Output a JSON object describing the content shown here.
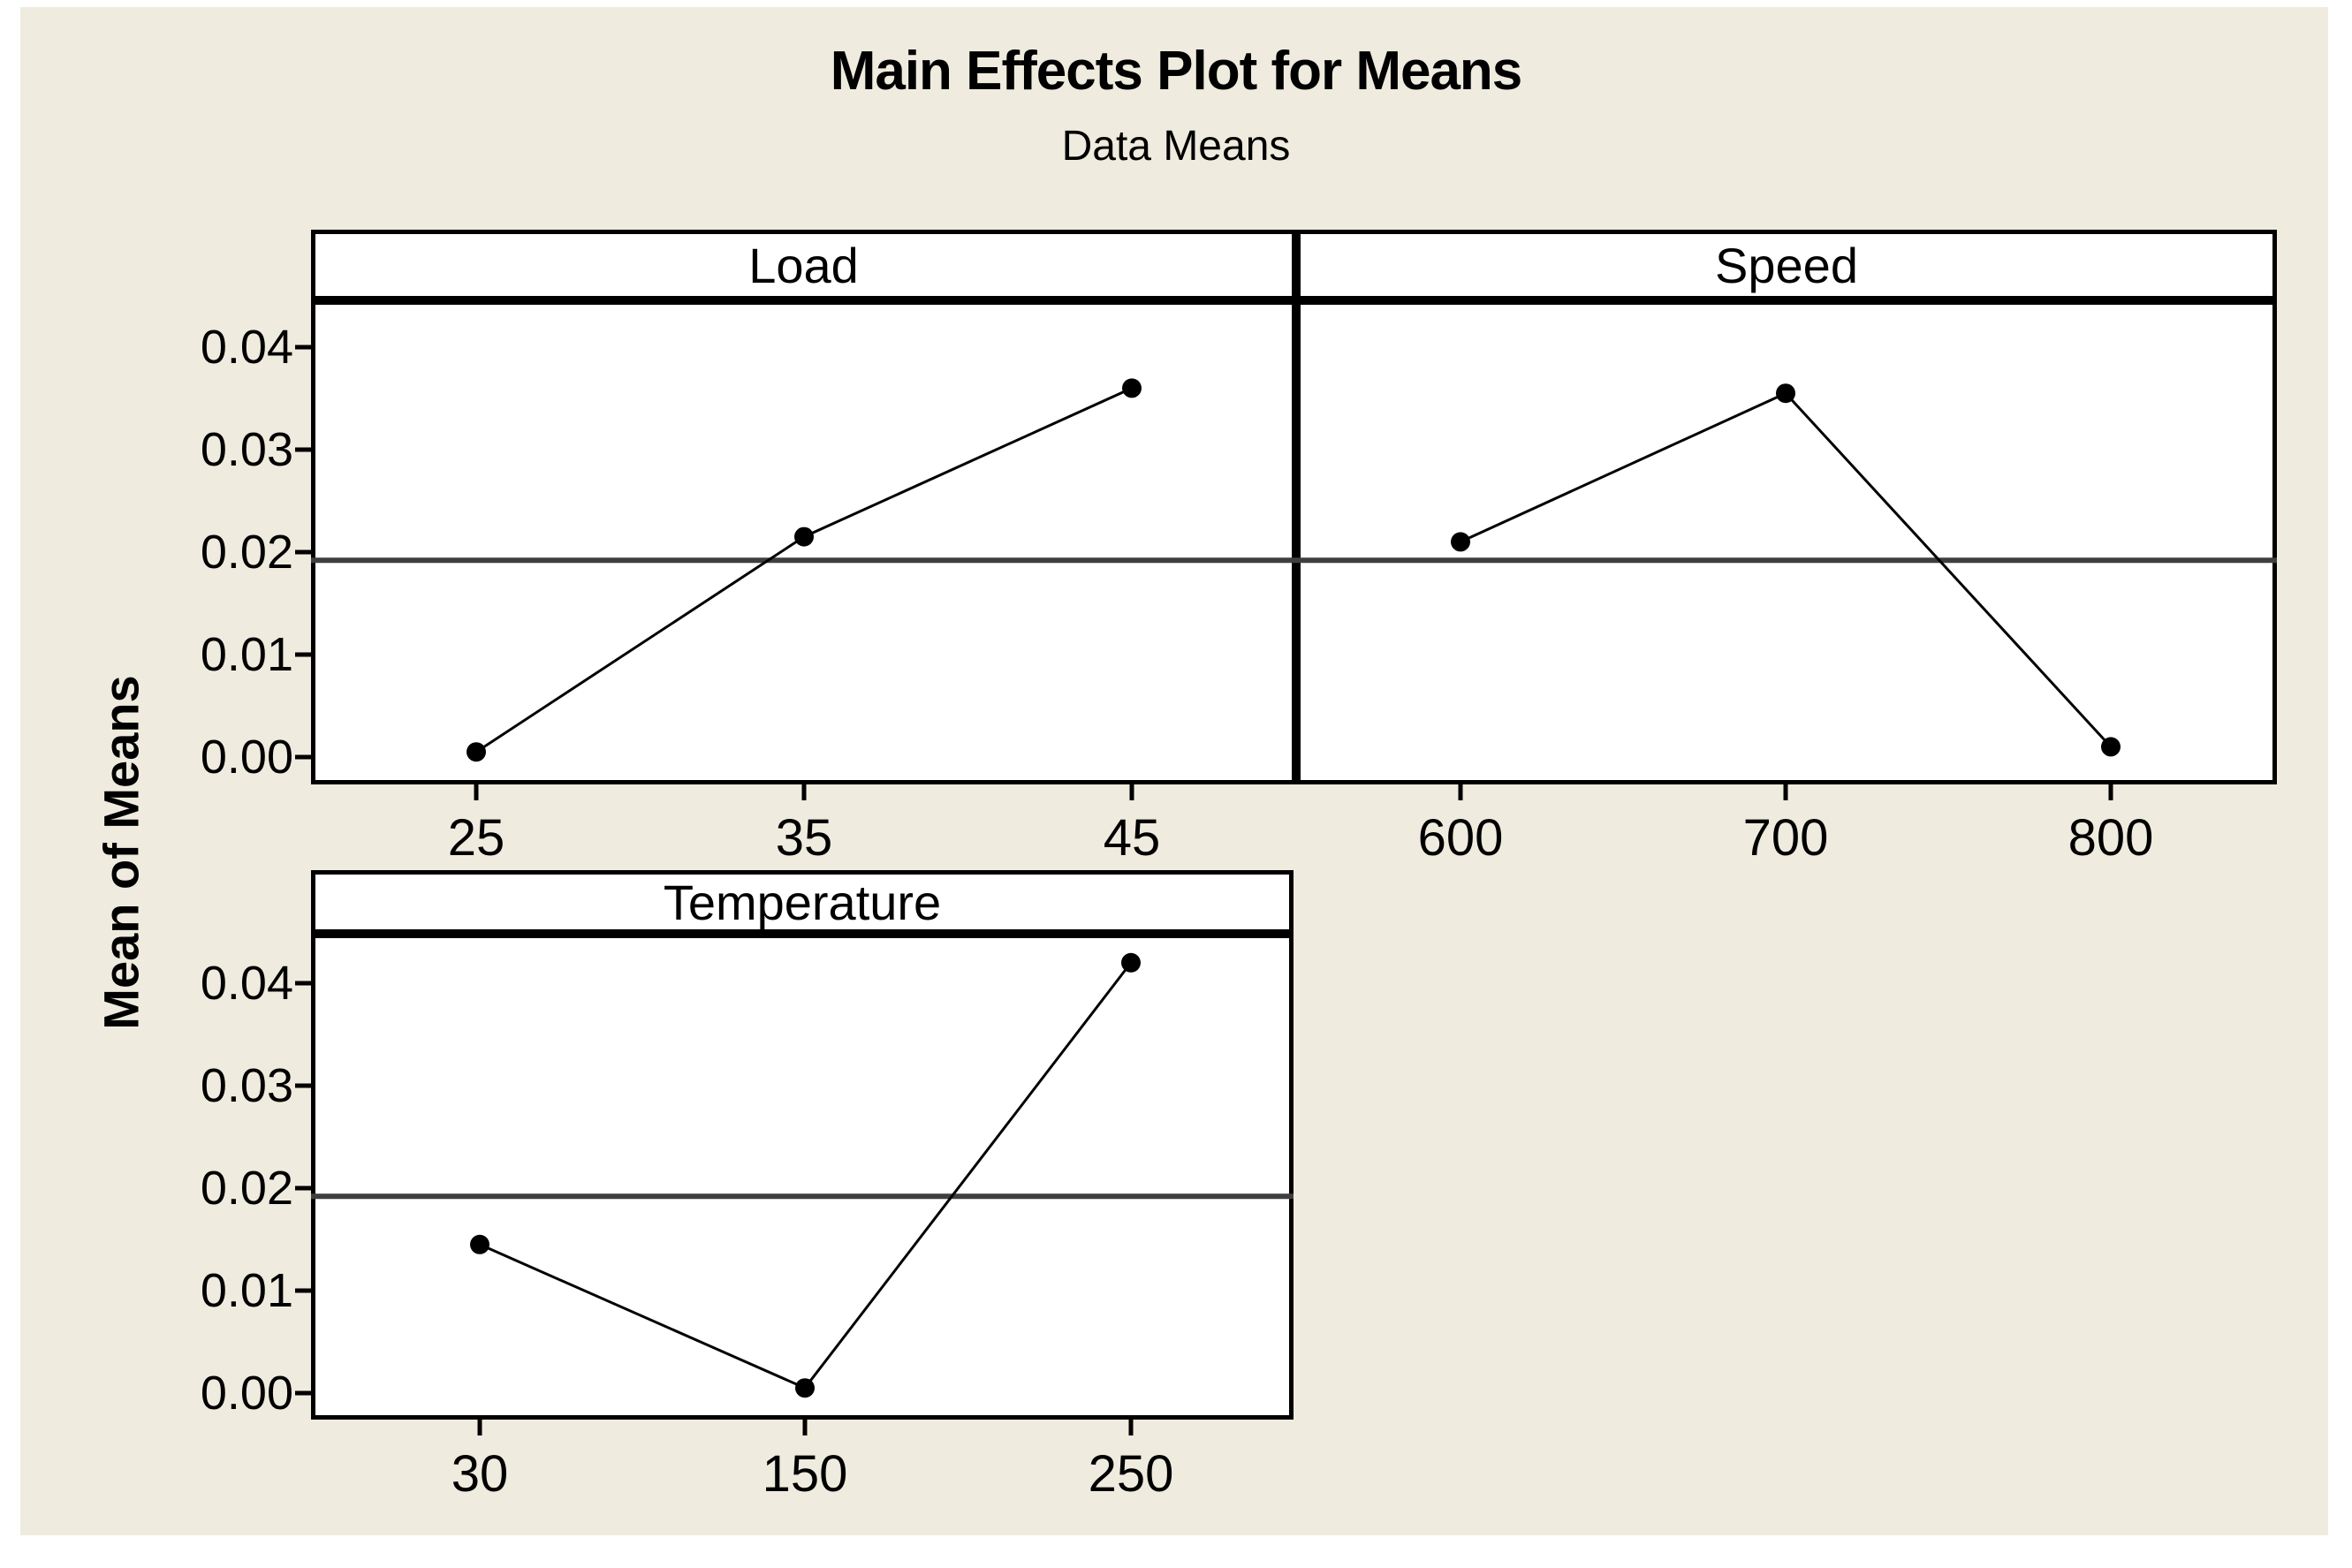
{
  "page": {
    "title": "Main Effects Plot for Means",
    "subtitle": "Data Means",
    "ylabel": "Mean of Means"
  },
  "y_axis": {
    "tick_labels": [
      "0.04",
      "0.03",
      "0.02",
      "0.01",
      "0.00"
    ]
  },
  "colors": {
    "canvas_background": "#EFEBDE",
    "plot_background": "#FFFFFF",
    "border": "#000000",
    "data_line": "#000000",
    "marker": "#000000",
    "reference_line": "#3F3F3F",
    "text": "#000000"
  },
  "chart_data": {
    "type": "line",
    "title": "Main Effects Plot for Means",
    "subtitle": "Data Means",
    "ylabel": "Mean of Means",
    "layout": "three factor panels (Load, Speed top row; Temperature bottom row), shared y scale",
    "grid": "off",
    "legend": "none",
    "ylim": [
      -0.0027,
      0.0446
    ],
    "y_ticks": [
      0.0,
      0.01,
      0.02,
      0.03,
      0.04
    ],
    "reference_line": 0.0192,
    "panels": [
      {
        "factor": "Load",
        "x_labels": [
          "25",
          "35",
          "45"
        ],
        "x": [
          25,
          35,
          45
        ],
        "values": [
          0.0005,
          0.0215,
          0.036
        ]
      },
      {
        "factor": "Speed",
        "x_labels": [
          "600",
          "700",
          "800"
        ],
        "x": [
          600,
          700,
          800
        ],
        "values": [
          0.021,
          0.0355,
          0.001
        ]
      },
      {
        "factor": "Temperature",
        "x_labels": [
          "30",
          "150",
          "250"
        ],
        "x": [
          30,
          150,
          250
        ],
        "values": [
          0.0145,
          0.0005,
          0.042
        ]
      }
    ]
  }
}
